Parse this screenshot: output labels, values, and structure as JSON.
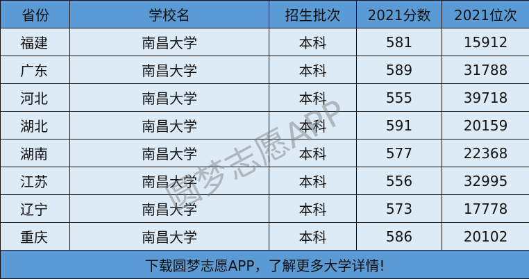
{
  "headers": [
    "省份",
    "学校名",
    "招生批次",
    "2021分数",
    "2021位次"
  ],
  "rows": [
    [
      "福建",
      "南昌大学",
      "本科",
      "581",
      "15912"
    ],
    [
      "广东",
      "南昌大学",
      "本科",
      "589",
      "31788"
    ],
    [
      "河北",
      "南昌大学",
      "本科",
      "555",
      "39718"
    ],
    [
      "湖北",
      "南昌大学",
      "本科",
      "591",
      "20159"
    ],
    [
      "湖南",
      "南昌大学",
      "本科",
      "577",
      "22368"
    ],
    [
      "江苏",
      "南昌大学",
      "本科",
      "556",
      "32995"
    ],
    [
      "辽宁",
      "南昌大学",
      "本科",
      "573",
      "17778"
    ],
    [
      "重庆",
      "南昌大学",
      "本科",
      "586",
      "20102"
    ]
  ],
  "footer": "下载圆梦志愿APP，了解更多大学详情!",
  "watermark": "圆梦志愿APP",
  "colors": {
    "header": "#5b9bd5",
    "row": "#ddebf7"
  }
}
